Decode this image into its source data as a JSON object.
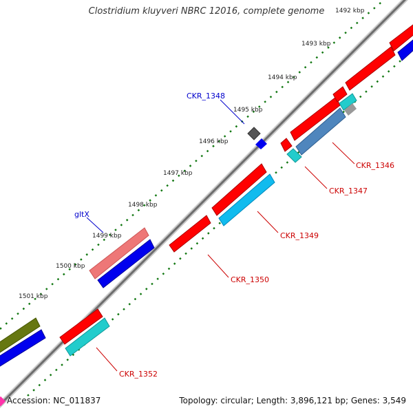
{
  "title": "Clostridium kluyveri NBRC 12016, complete genome",
  "accession_label": "Accession: NC_011837",
  "topology_label": "Topology: circular; Length: 3,896,121 bp; Genes: 3,549",
  "ticks": [
    "1492 kbp",
    "1493 kbp",
    "1494 kbp",
    "1495 kbp",
    "1496 kbp",
    "1497 kbp",
    "1498 kbp",
    "1499 kbp",
    "1500 kbp",
    "1501 kbp"
  ],
  "gene_labels": {
    "ckr_1348": "CKR_1348",
    "gltx": "gltX",
    "ckr_1346": "CKR_1346",
    "ckr_1347": "CKR_1347",
    "ckr_1349": "CKR_1349",
    "ckr_1350": "CKR_1350",
    "ckr_1352": "CKR_1352"
  },
  "colors": {
    "cds_red": "#ff0000",
    "cds_blue": "#0000ee",
    "cds_cyan": "#22cccc",
    "cds_skyblue": "#11bbee",
    "cds_steel": "#4f86bd",
    "cds_pink": "#ee7777",
    "cds_olive": "#667711",
    "cds_gray": "#555555",
    "label_blue": "#0000cc",
    "label_red": "#cc0000",
    "backbone": "#888888",
    "tick_green": "#117711"
  }
}
